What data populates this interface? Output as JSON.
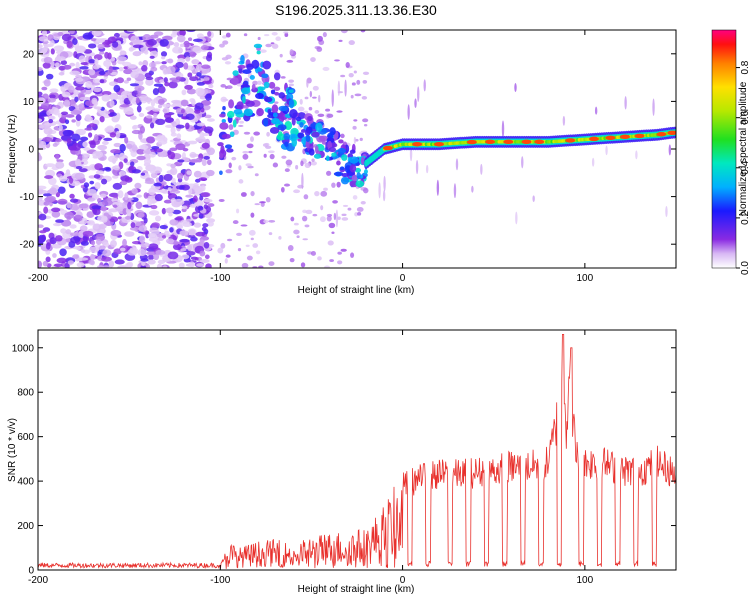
{
  "title": "S196.2025.311.13.36.E30",
  "chart_data": [
    {
      "type": "heatmap",
      "name": "spectrogram",
      "xlabel": "Height of straight line (km)",
      "ylabel": "Frequency (Hz)",
      "xlim": [
        -200,
        150
      ],
      "ylim": [
        -25,
        25
      ],
      "xticks": [
        -200,
        -100,
        0,
        100
      ],
      "yticks": [
        -20,
        -10,
        0,
        10,
        20
      ],
      "colorbar": {
        "label": "Normalized spectral amplitude",
        "range": [
          0,
          0.95
        ],
        "ticks": [
          0.0,
          0.2,
          0.4,
          0.6,
          0.8
        ]
      },
      "ridge": {
        "description_points_x": [
          -100,
          -90,
          -80,
          -60,
          -50,
          -40,
          -30,
          -20,
          -10,
          0,
          20,
          40,
          60,
          80,
          100,
          120,
          140,
          150
        ],
        "frequency_hz": [
          0,
          12,
          15,
          5,
          3,
          1,
          -4,
          -3,
          0,
          1,
          1,
          1.5,
          1.5,
          1.5,
          2,
          2.5,
          3,
          3.5
        ]
      }
    },
    {
      "type": "line",
      "name": "snr",
      "xlabel": "Height of straight line (km)",
      "ylabel": "SNR (10 * v/v)",
      "xlim": [
        -200,
        150
      ],
      "ylim": [
        0,
        1080
      ],
      "xticks": [
        -200,
        -100,
        0,
        100
      ],
      "yticks": [
        0,
        200,
        400,
        600,
        800,
        1000
      ],
      "color": "#e8302c",
      "envelope": {
        "x": [
          -200,
          -100,
          -95,
          -90,
          -80,
          -70,
          -60,
          -50,
          -40,
          -30,
          -20,
          -10,
          0,
          10,
          20,
          30,
          40,
          50,
          60,
          70,
          80,
          85,
          88,
          90,
          92,
          95,
          100,
          110,
          120,
          130,
          140,
          150
        ],
        "y": [
          20,
          25,
          130,
          100,
          130,
          140,
          120,
          150,
          170,
          180,
          190,
          300,
          440,
          480,
          500,
          500,
          510,
          520,
          540,
          540,
          560,
          800,
          1060,
          700,
          1000,
          600,
          560,
          560,
          520,
          520,
          560,
          500
        ]
      }
    }
  ]
}
